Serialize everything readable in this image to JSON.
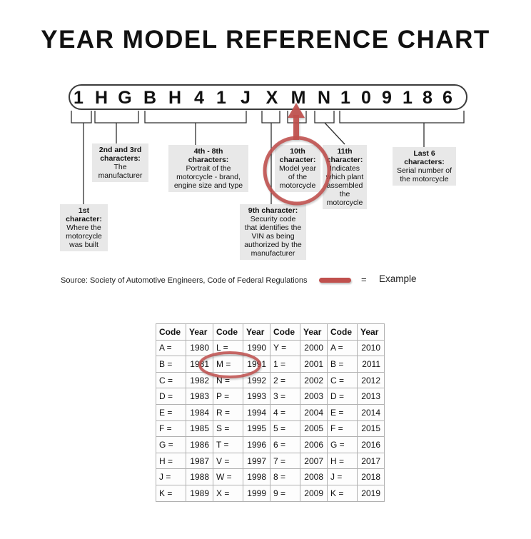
{
  "title": "YEAR MODEL REFERENCE CHART",
  "vin": {
    "characters": [
      "1",
      "H",
      "G",
      "B",
      "H",
      "4",
      "1",
      "J",
      "X",
      "M",
      "N",
      "1",
      "0",
      "9",
      "1",
      "8",
      "6"
    ]
  },
  "diagram": {
    "callouts": {
      "c1": {
        "title": "1st\ncharacter:",
        "desc": "Where the\nmotorcycle\nwas built"
      },
      "c23": {
        "title": "2nd and 3rd\ncharacters:",
        "desc": "The\nmanufacturer"
      },
      "c48": {
        "title": "4th - 8th\ncharacters:",
        "desc": "Portrait of the\nmotorcycle - brand,\nengine size and type"
      },
      "c9": {
        "title": "9th character:",
        "desc": "Security code\nthat identifies the\nVIN as being\nauthorized by the\nmanufacturer"
      },
      "c10": {
        "title": "10th\ncharacter:",
        "desc": "Model year\nof the\nmotorcycle"
      },
      "c11": {
        "title": "11th\ncharacter:",
        "desc": "Indicates\nwhich plant\nassembled\nthe\nmotorcycle"
      },
      "cl6": {
        "title": "Last 6\ncharacters:",
        "desc": "Serial number of\nthe motorcycle"
      }
    }
  },
  "source": {
    "label": "Source:  Society of Automotive Engineers, Code of Federal Regulations"
  },
  "legend": {
    "equals": "=",
    "label": "Example"
  },
  "colors": {
    "accent_red": "#c0504d",
    "callout_bg": "#e8e8e8",
    "table_border": "#b1b1b1"
  },
  "table": {
    "headers": [
      "Code",
      "Year",
      "Code",
      "Year",
      "Code",
      "Year",
      "Code",
      "Year"
    ],
    "rows": [
      [
        "A =",
        "1980",
        "L =",
        "1990",
        "Y =",
        "2000",
        "A =",
        "2010"
      ],
      [
        "B =",
        "1981",
        "M =",
        "1991",
        "1 =",
        "2001",
        "B =",
        "2011"
      ],
      [
        "C =",
        "1982",
        "N =",
        "1992",
        "2 =",
        "2002",
        "C =",
        "2012"
      ],
      [
        "D =",
        "1983",
        "P =",
        "1993",
        "3 =",
        "2003",
        "D =",
        "2013"
      ],
      [
        "E =",
        "1984",
        "R =",
        "1994",
        "4 =",
        "2004",
        "E =",
        "2014"
      ],
      [
        "F =",
        "1985",
        "S =",
        "1995",
        "5 =",
        "2005",
        "F =",
        "2015"
      ],
      [
        "G =",
        "1986",
        "T =",
        "1996",
        "6 =",
        "2006",
        "G =",
        "2016"
      ],
      [
        "H =",
        "1987",
        "V =",
        "1997",
        "7 =",
        "2007",
        "H =",
        "2017"
      ],
      [
        "J =",
        "1988",
        "W =",
        "1998",
        "8 =",
        "2008",
        "J =",
        "2018"
      ],
      [
        "K =",
        "1989",
        "X =",
        "1999",
        "9 =",
        "2009",
        "K =",
        "2019"
      ]
    ]
  }
}
